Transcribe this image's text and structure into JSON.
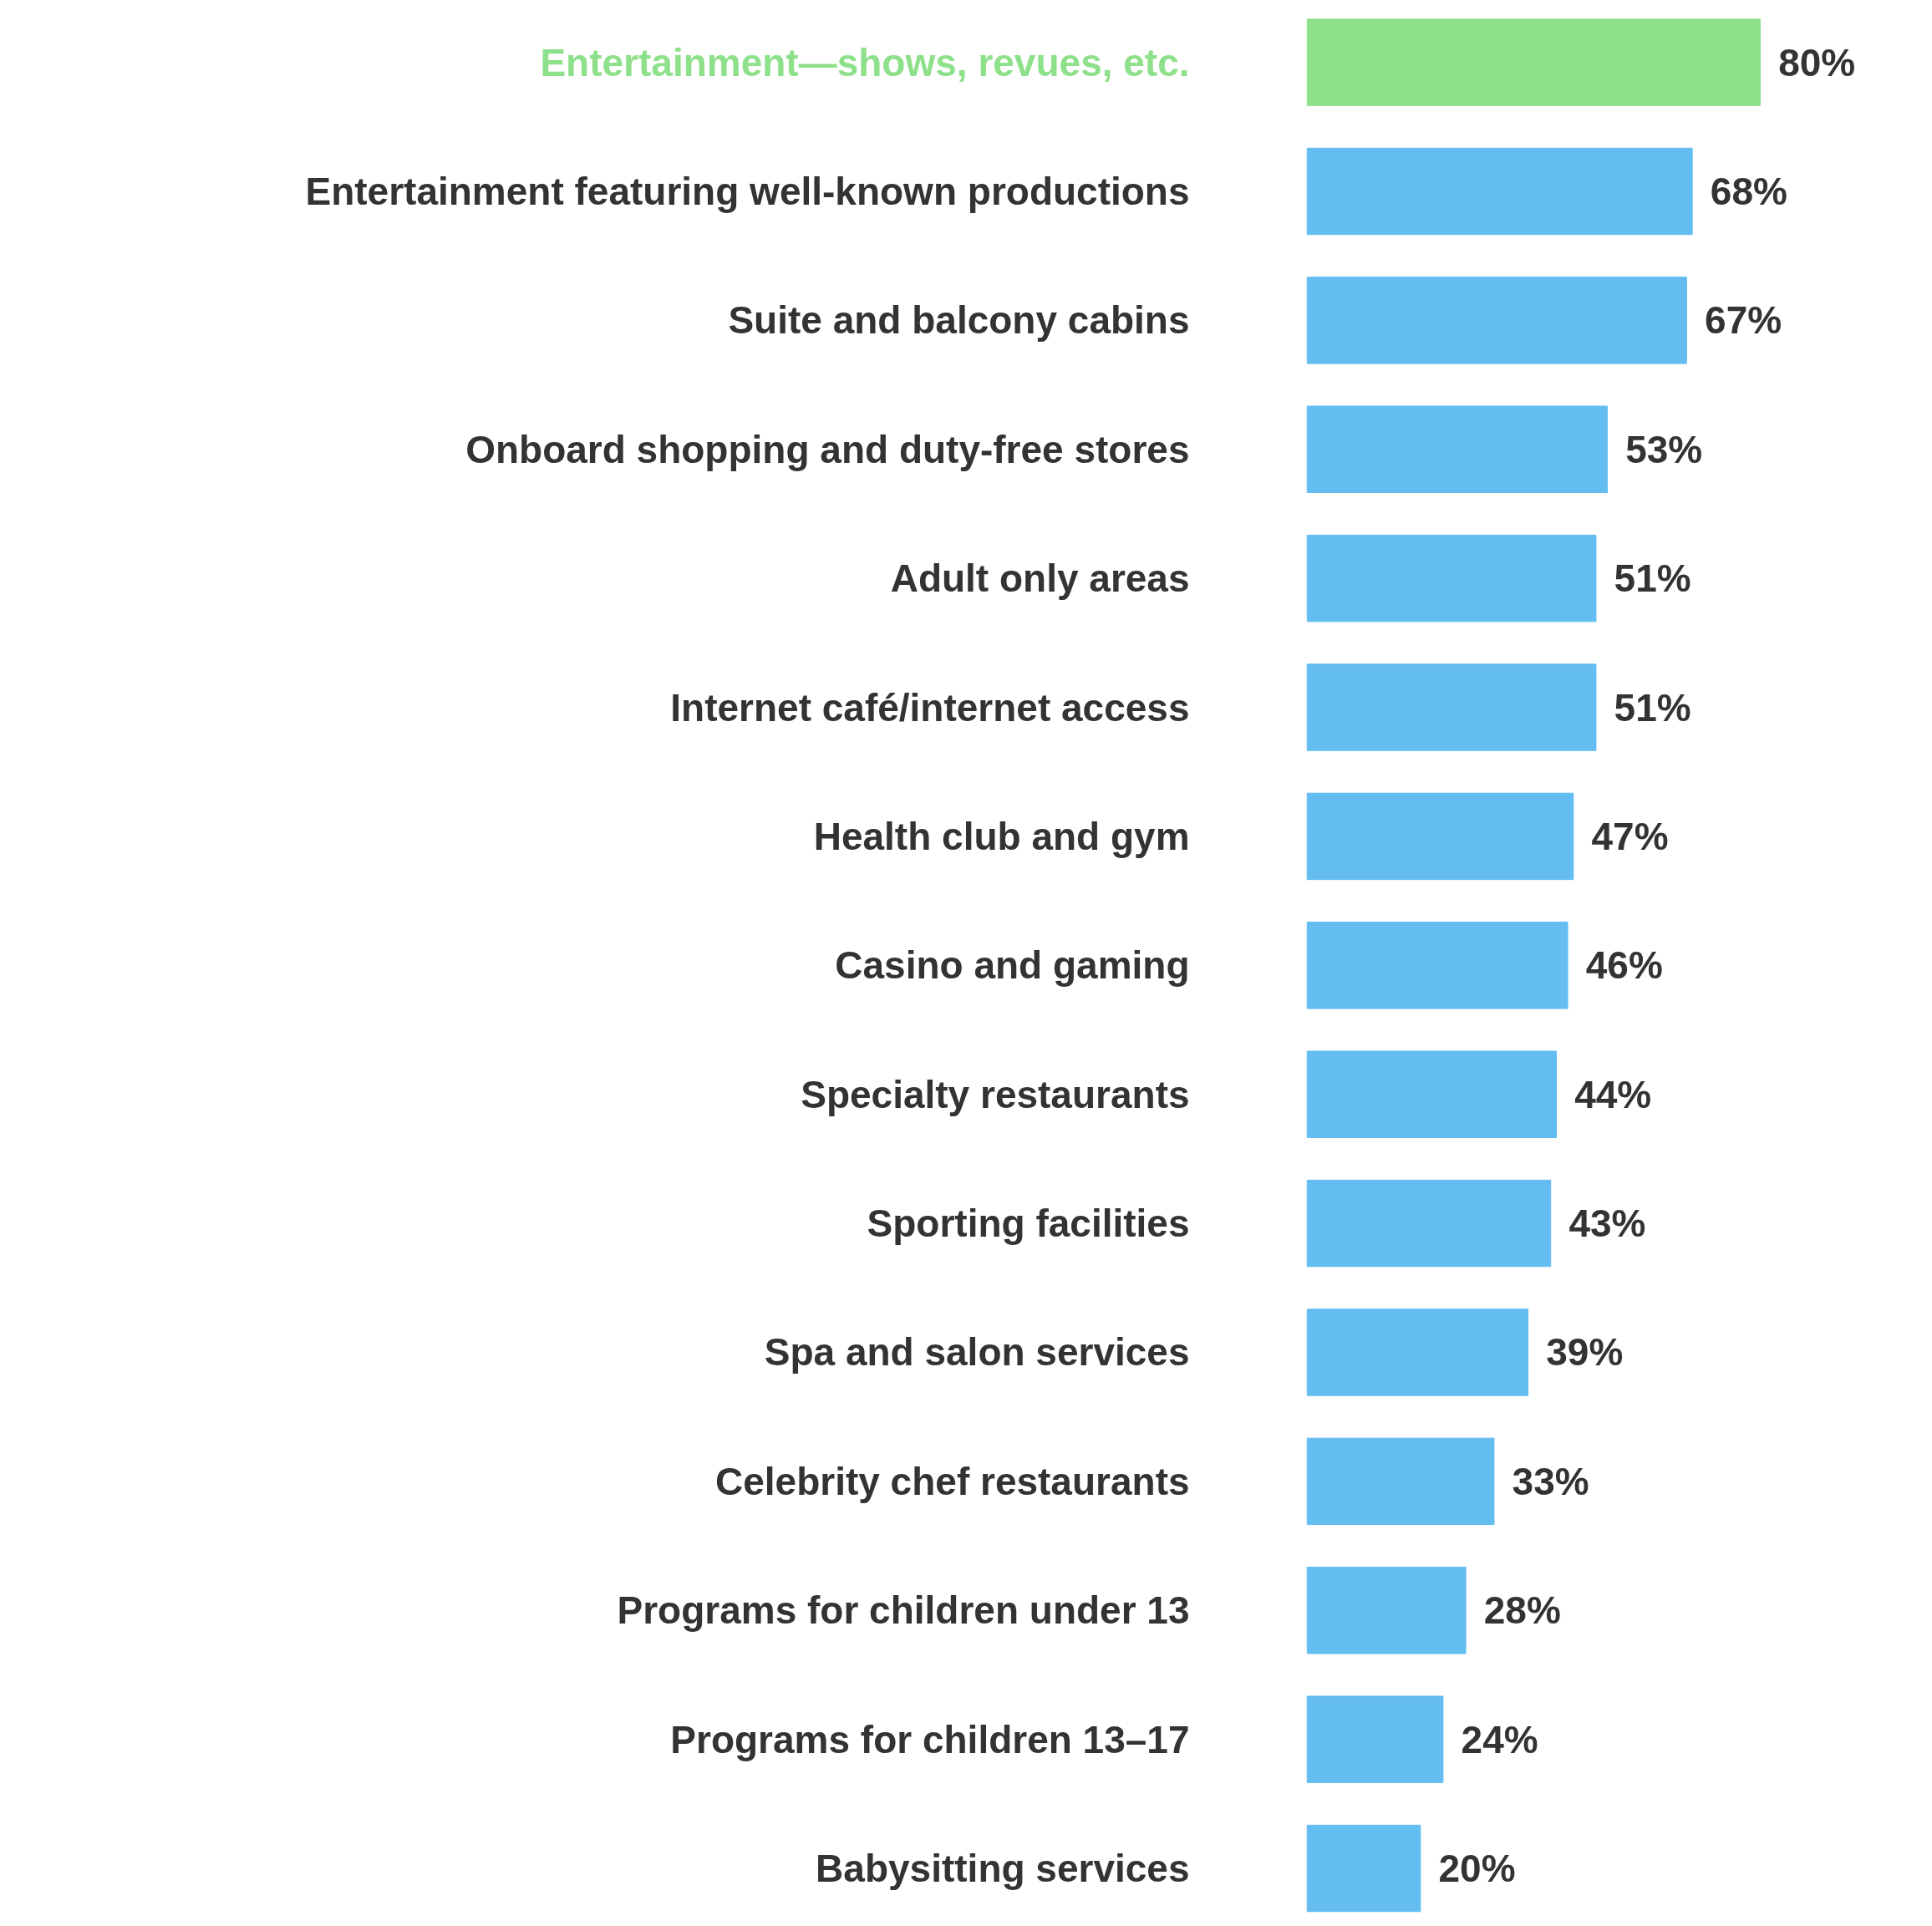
{
  "chart_data": {
    "type": "bar",
    "orientation": "horizontal",
    "categories": [
      "Entertainment—shows, revues, etc.",
      "Entertainment featuring well-known productions",
      "Suite and balcony cabins",
      "Onboard shopping and duty-free stores",
      "Adult only areas",
      "Internet café/internet access",
      "Health club and gym",
      "Casino and gaming",
      "Specialty restaurants",
      "Sporting facilities",
      "Spa and salon services",
      "Celebrity chef restaurants",
      "Programs for children under 13",
      "Programs for children 13–17",
      "Babysitting services"
    ],
    "values": [
      80,
      68,
      67,
      53,
      51,
      51,
      47,
      46,
      44,
      43,
      39,
      33,
      28,
      24,
      20
    ],
    "colors": [
      "#8ee08a",
      "#63bdf0",
      "#63bdf0",
      "#63bdf0",
      "#63bdf0",
      "#63bdf0",
      "#63bdf0",
      "#63bdf0",
      "#63bdf0",
      "#63bdf0",
      "#63bdf0",
      "#63bdf0",
      "#63bdf0",
      "#63bdf0",
      "#63bdf0"
    ],
    "value_labels": [
      "80%",
      "68%",
      "67%",
      "53%",
      "51%",
      "51%",
      "47%",
      "46%",
      "44%",
      "43%",
      "39%",
      "33%",
      "28%",
      "24%",
      "20%"
    ]
  }
}
